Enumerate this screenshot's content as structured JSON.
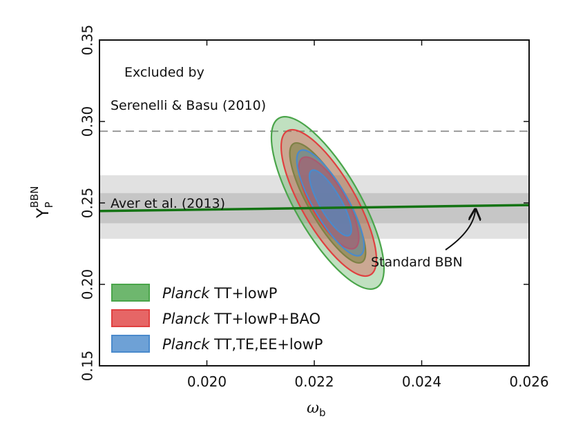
{
  "chart_data": {
    "type": "contour",
    "xlabel": "ω",
    "xlabel_sub": "b",
    "ylabel": "Y",
    "ylabel_sup": "BBN",
    "ylabel_sub": "P",
    "xlim": [
      0.018,
      0.026
    ],
    "ylim": [
      0.15,
      0.35
    ],
    "x_ticks": [
      0.02,
      0.022,
      0.024,
      0.026
    ],
    "x_tick_labels": [
      "0.020",
      "0.022",
      "0.024",
      "0.026"
    ],
    "y_ticks": [
      0.15,
      0.2,
      0.25,
      0.3,
      0.35
    ],
    "y_tick_labels": [
      "0.15",
      "0.20",
      "0.25",
      "0.30",
      "0.35"
    ],
    "exclusion_line": {
      "y": 0.294,
      "label_line1": "Excluded by",
      "label_line2": "Serenelli & Basu (2010)"
    },
    "aver_band": {
      "center": 0.2465,
      "inner": [
        0.2375,
        0.256
      ],
      "outer": [
        0.228,
        0.267
      ],
      "label": "Aver et al. (2013)"
    },
    "standard_bbn": {
      "x": [
        0.018,
        0.026
      ],
      "y": [
        0.245,
        0.2487
      ],
      "label": "Standard BBN",
      "arrow_to_x": 0.025
    },
    "series": [
      {
        "name": "Planck TT+lowP",
        "italic": "Planck",
        "rest": " TT+lowP",
        "color": "#4aa54a",
        "center": [
          0.02225,
          0.25
        ],
        "sigma1": [
          0.00035,
          0.042
        ],
        "sigma2": [
          0.0006,
          0.06
        ],
        "angle_deg": 30
      },
      {
        "name": "Planck TT+lowP+BAO",
        "italic": "Planck",
        "rest": " TT+lowP+BAO",
        "color": "#e04040",
        "center": [
          0.02227,
          0.25
        ],
        "sigma1": [
          0.00032,
          0.032
        ],
        "sigma2": [
          0.0005,
          0.051
        ],
        "angle_deg": 30
      },
      {
        "name": "Planck TT,TE,EE+lowP",
        "italic": "Planck",
        "rest": " TT,TE,EE+lowP",
        "color": "#4a8acc",
        "center": [
          0.0223,
          0.25
        ],
        "sigma1": [
          0.0002,
          0.023
        ],
        "sigma2": [
          0.00032,
          0.037
        ],
        "angle_deg": 30
      }
    ]
  }
}
